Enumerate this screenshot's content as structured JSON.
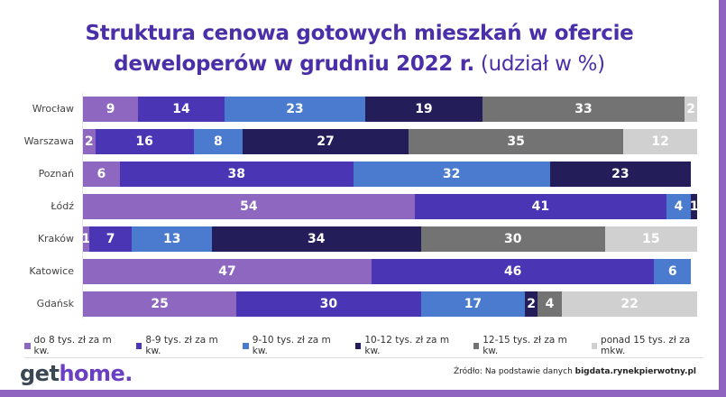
{
  "title_line1": "Struktura cenowa gotowych mieszkań w ofercie",
  "title_line2_bold": "deweloperów w grudniu 2022 r.",
  "title_line2_light": " (udział w %)",
  "chart_data": {
    "type": "bar",
    "orientation": "horizontal",
    "stacked": true,
    "unit": "%",
    "categories": [
      "Wrocław",
      "Warszawa",
      "Poznań",
      "Łódź",
      "Kraków",
      "Katowice",
      "Gdańsk"
    ],
    "series": [
      {
        "name": "do 8 tys. zł za m kw.",
        "color": "#8e68c0",
        "values": [
          9,
          2,
          6,
          54,
          1,
          47,
          25
        ]
      },
      {
        "name": "8-9 tys. zł za m kw.",
        "color": "#4a35b5",
        "values": [
          14,
          16,
          38,
          41,
          7,
          46,
          30
        ]
      },
      {
        "name": "9-10 tys. zł za m kw.",
        "color": "#4a7bcf",
        "values": [
          23,
          8,
          32,
          4,
          13,
          6,
          17
        ]
      },
      {
        "name": "10-12 tys. zł za m kw.",
        "color": "#231d5a",
        "values": [
          19,
          27,
          23,
          1,
          34,
          0,
          2
        ]
      },
      {
        "name": "12-15 tys. zł za m kw.",
        "color": "#737373",
        "values": [
          33,
          35,
          0,
          0,
          30,
          0,
          4
        ]
      },
      {
        "name": "ponad 15 tys. zł za mkw.",
        "color": "#d0d0d0",
        "values": [
          2,
          12,
          0,
          0,
          15,
          0,
          22
        ]
      }
    ],
    "xlim": [
      0,
      100
    ],
    "legend_position": "bottom",
    "grid": false
  },
  "logo": {
    "part1": "get",
    "part2": "home."
  },
  "source_prefix": "Źródło: Na podstawie danych ",
  "source_bold": "bigdata.rynekpierwotny.pl"
}
